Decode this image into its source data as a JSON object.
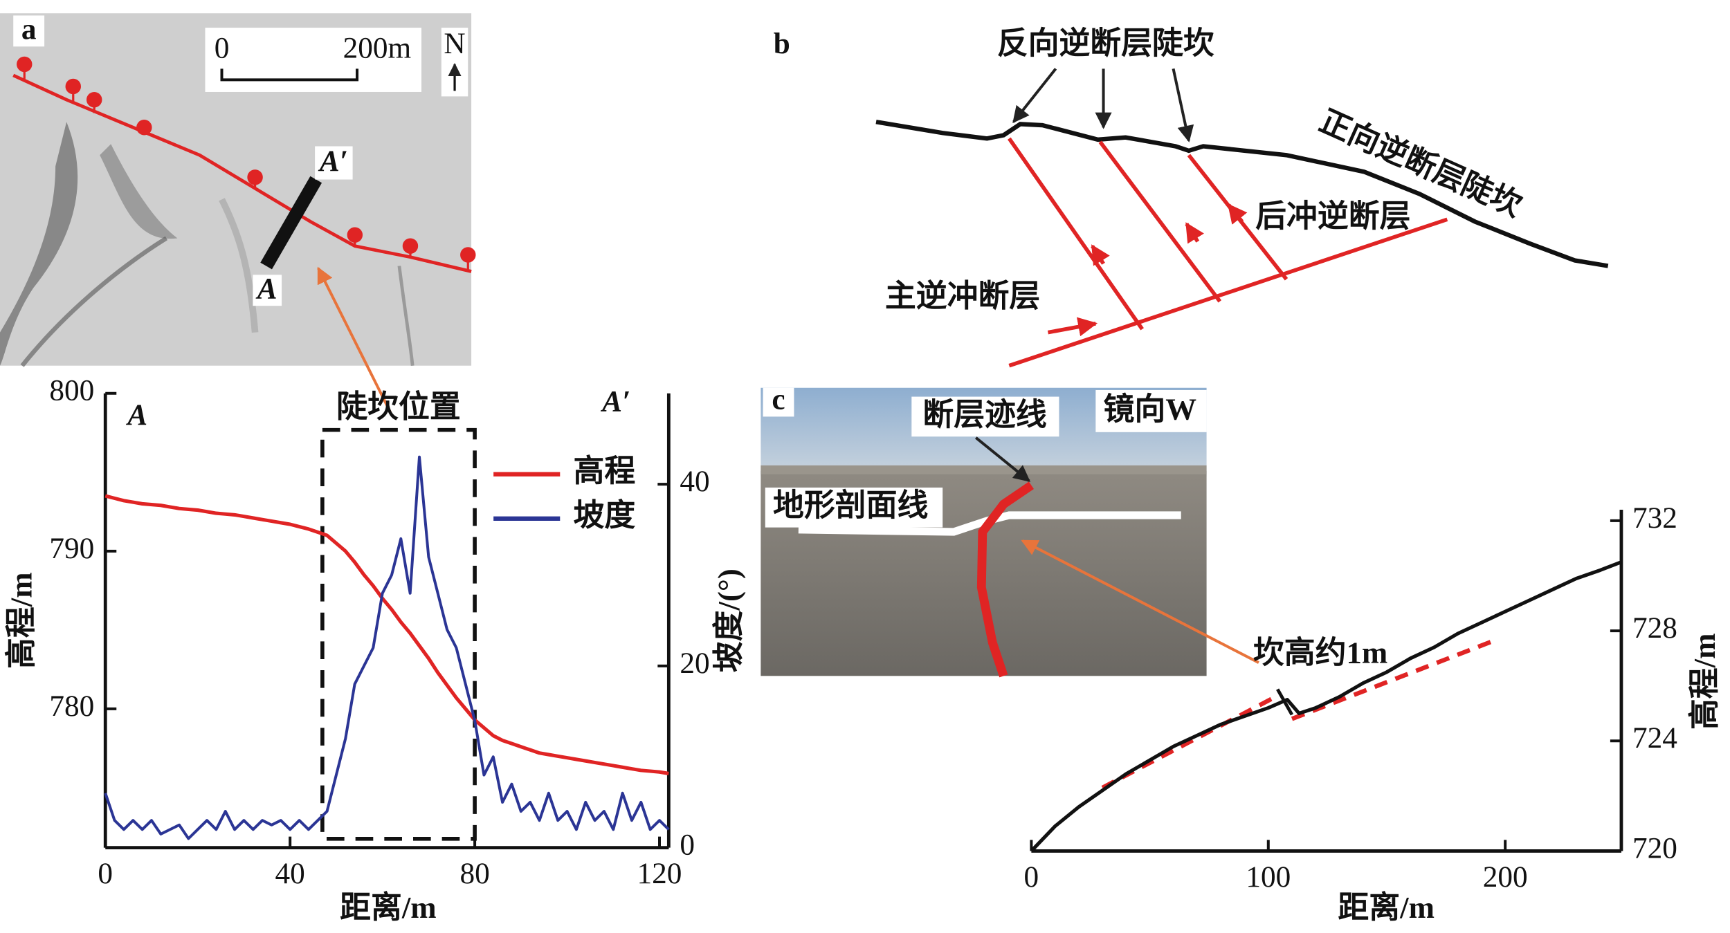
{
  "panel_labels": [
    "a",
    "b",
    "c"
  ],
  "map": {
    "scale_start": "0",
    "scale_end": "200m",
    "north": "N",
    "section_start": "A",
    "section_end": "A′"
  },
  "diagram": {
    "reverse_scarp": "反向逆断层陡坎",
    "forward_scarp": "正向逆断层陡坎",
    "backthrust": "后冲逆断层",
    "main_thrust": "主逆冲断层"
  },
  "photo": {
    "fault_trace": "断层迹线",
    "view": "镜向W",
    "profile_line": "地形剖面线"
  },
  "chart_data": [
    {
      "type": "line",
      "start_label": "A",
      "end_label": "A′",
      "highlight": {
        "label": "陡坎位置",
        "x": [
          47,
          80
        ]
      },
      "xlabel": "距离/m",
      "ylabel": "高程/m",
      "y2label": "坡度/(°)",
      "x": [
        0,
        2,
        4,
        6,
        8,
        10,
        12,
        14,
        16,
        18,
        20,
        22,
        24,
        26,
        28,
        30,
        32,
        34,
        36,
        38,
        40,
        42,
        44,
        46,
        48,
        50,
        52,
        54,
        56,
        58,
        60,
        62,
        64,
        66,
        68,
        70,
        72,
        74,
        76,
        78,
        80,
        82,
        84,
        86,
        88,
        90,
        92,
        94,
        96,
        98,
        100,
        102,
        104,
        106,
        108,
        110,
        112,
        114,
        116,
        118,
        120,
        122
      ],
      "series": [
        {
          "name": "高程",
          "color": "#e02424",
          "values": [
            793.5,
            793.35,
            793.2,
            793.1,
            793.0,
            792.95,
            792.9,
            792.8,
            792.7,
            792.65,
            792.6,
            792.5,
            792.4,
            792.35,
            792.3,
            792.2,
            792.1,
            792.0,
            791.9,
            791.8,
            791.7,
            791.55,
            791.4,
            791.2,
            791.0,
            790.5,
            790.0,
            789.3,
            788.5,
            787.8,
            787.0,
            786.3,
            785.5,
            784.8,
            784.0,
            783.2,
            782.3,
            781.5,
            780.7,
            780.0,
            779.3,
            778.8,
            778.3,
            778.0,
            777.8,
            777.6,
            777.4,
            777.2,
            777.1,
            777.0,
            776.9,
            776.8,
            776.7,
            776.6,
            776.5,
            776.4,
            776.3,
            776.2,
            776.1,
            776.05,
            776.0,
            775.9
          ]
        },
        {
          "name": "坡度",
          "color": "#2b3595",
          "axis": "y2",
          "values": [
            6,
            3,
            2,
            3,
            2,
            3,
            1.5,
            2,
            2.5,
            1,
            2,
            3,
            2,
            4,
            2,
            3,
            2,
            3,
            2.5,
            3,
            2,
            3,
            2,
            3,
            4,
            8,
            12,
            18,
            20,
            22,
            28,
            30,
            34,
            28,
            43,
            32,
            28,
            24,
            22,
            18,
            14,
            8,
            10,
            5,
            7,
            4,
            5,
            3,
            6,
            3,
            4,
            2,
            5,
            3,
            4,
            2,
            6,
            3,
            5,
            2,
            3,
            2
          ]
        }
      ],
      "xlim": [
        0,
        122
      ],
      "xticks": [
        0,
        40,
        80,
        120
      ],
      "ylim": [
        771.2,
        800
      ],
      "yticks": [
        780,
        790,
        800
      ],
      "y2lim": [
        0,
        50
      ],
      "y2ticks": [
        0,
        20,
        40
      ]
    },
    {
      "type": "line",
      "xlabel": "距离/m",
      "ylabel": "高程/m",
      "annotation": "坎高约1m",
      "x": [
        0,
        10,
        20,
        30,
        40,
        50,
        60,
        70,
        80,
        90,
        100,
        108,
        113,
        120,
        130,
        140,
        150,
        160,
        170,
        180,
        190,
        200,
        210,
        220,
        230,
        240,
        249
      ],
      "series": [
        {
          "name": "",
          "color": "#111111",
          "values": [
            720,
            720.9,
            721.6,
            722.2,
            722.8,
            723.3,
            723.8,
            724.2,
            724.6,
            724.9,
            725.2,
            725.5,
            725.0,
            725.2,
            725.6,
            726.1,
            726.5,
            727.0,
            727.4,
            727.9,
            728.3,
            728.7,
            729.1,
            729.5,
            729.9,
            730.2,
            730.5
          ]
        }
      ],
      "fit_lines": [
        {
          "color": "#e02424",
          "x": [
            30,
            103
          ],
          "values": [
            722.3,
            725.6
          ]
        },
        {
          "color": "#e02424",
          "x": [
            110,
            194
          ],
          "values": [
            724.8,
            727.6
          ]
        }
      ],
      "xlim": [
        0,
        249
      ],
      "xticks": [
        0,
        100,
        200
      ],
      "ylim": [
        720,
        732.4
      ],
      "yticks": [
        720,
        724,
        728,
        732
      ]
    }
  ]
}
